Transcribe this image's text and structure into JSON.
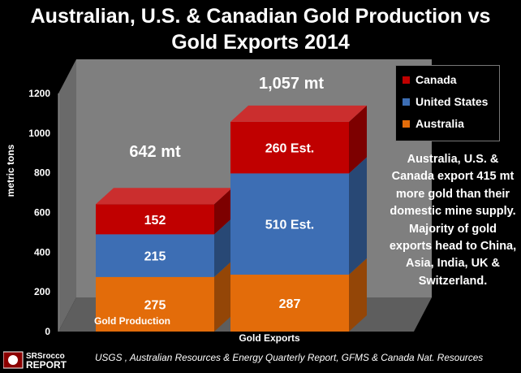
{
  "chart_data": {
    "type": "bar",
    "stacked": true,
    "title": "Australian, U.S. & Canadian Gold Production vs Gold Exports 2014",
    "title_lines": [
      "Australian, U.S. & Canadian Gold Production vs",
      "Gold Exports 2014"
    ],
    "ylabel": "metric tons",
    "ylim": [
      0,
      1200
    ],
    "yticks": [
      "0",
      "200",
      "400",
      "600",
      "800",
      "1000",
      "1200"
    ],
    "categories": [
      "Gold Production",
      "Gold Exports"
    ],
    "totals": [
      "642 mt",
      "1,057 mt"
    ],
    "series": [
      {
        "name": "Australia",
        "values": [
          275,
          287
        ],
        "labels": [
          "275",
          "287"
        ],
        "color": "#E36C0A"
      },
      {
        "name": "United States",
        "values": [
          215,
          510
        ],
        "labels": [
          "215",
          "510 Est."
        ],
        "color": "#3D6EB4"
      },
      {
        "name": "Canada",
        "values": [
          152,
          260
        ],
        "labels": [
          "152",
          "260 Est."
        ],
        "color": "#C00000"
      }
    ],
    "legend_order": [
      "Canada",
      "United States",
      "Australia"
    ],
    "legend_position": "right",
    "grid": false
  },
  "annotation": "Australia, U.S. & Canada export 415 mt more gold than their domestic mine supply. Majority of gold exports head to China, Asia, India, UK & Switzerland.",
  "footer": {
    "logo_text": [
      "SRSrocco",
      "REPORT"
    ],
    "source": "USGS , Australian Resources & Energy Quarterly Report, GFMS & Canada Nat. Resources"
  }
}
